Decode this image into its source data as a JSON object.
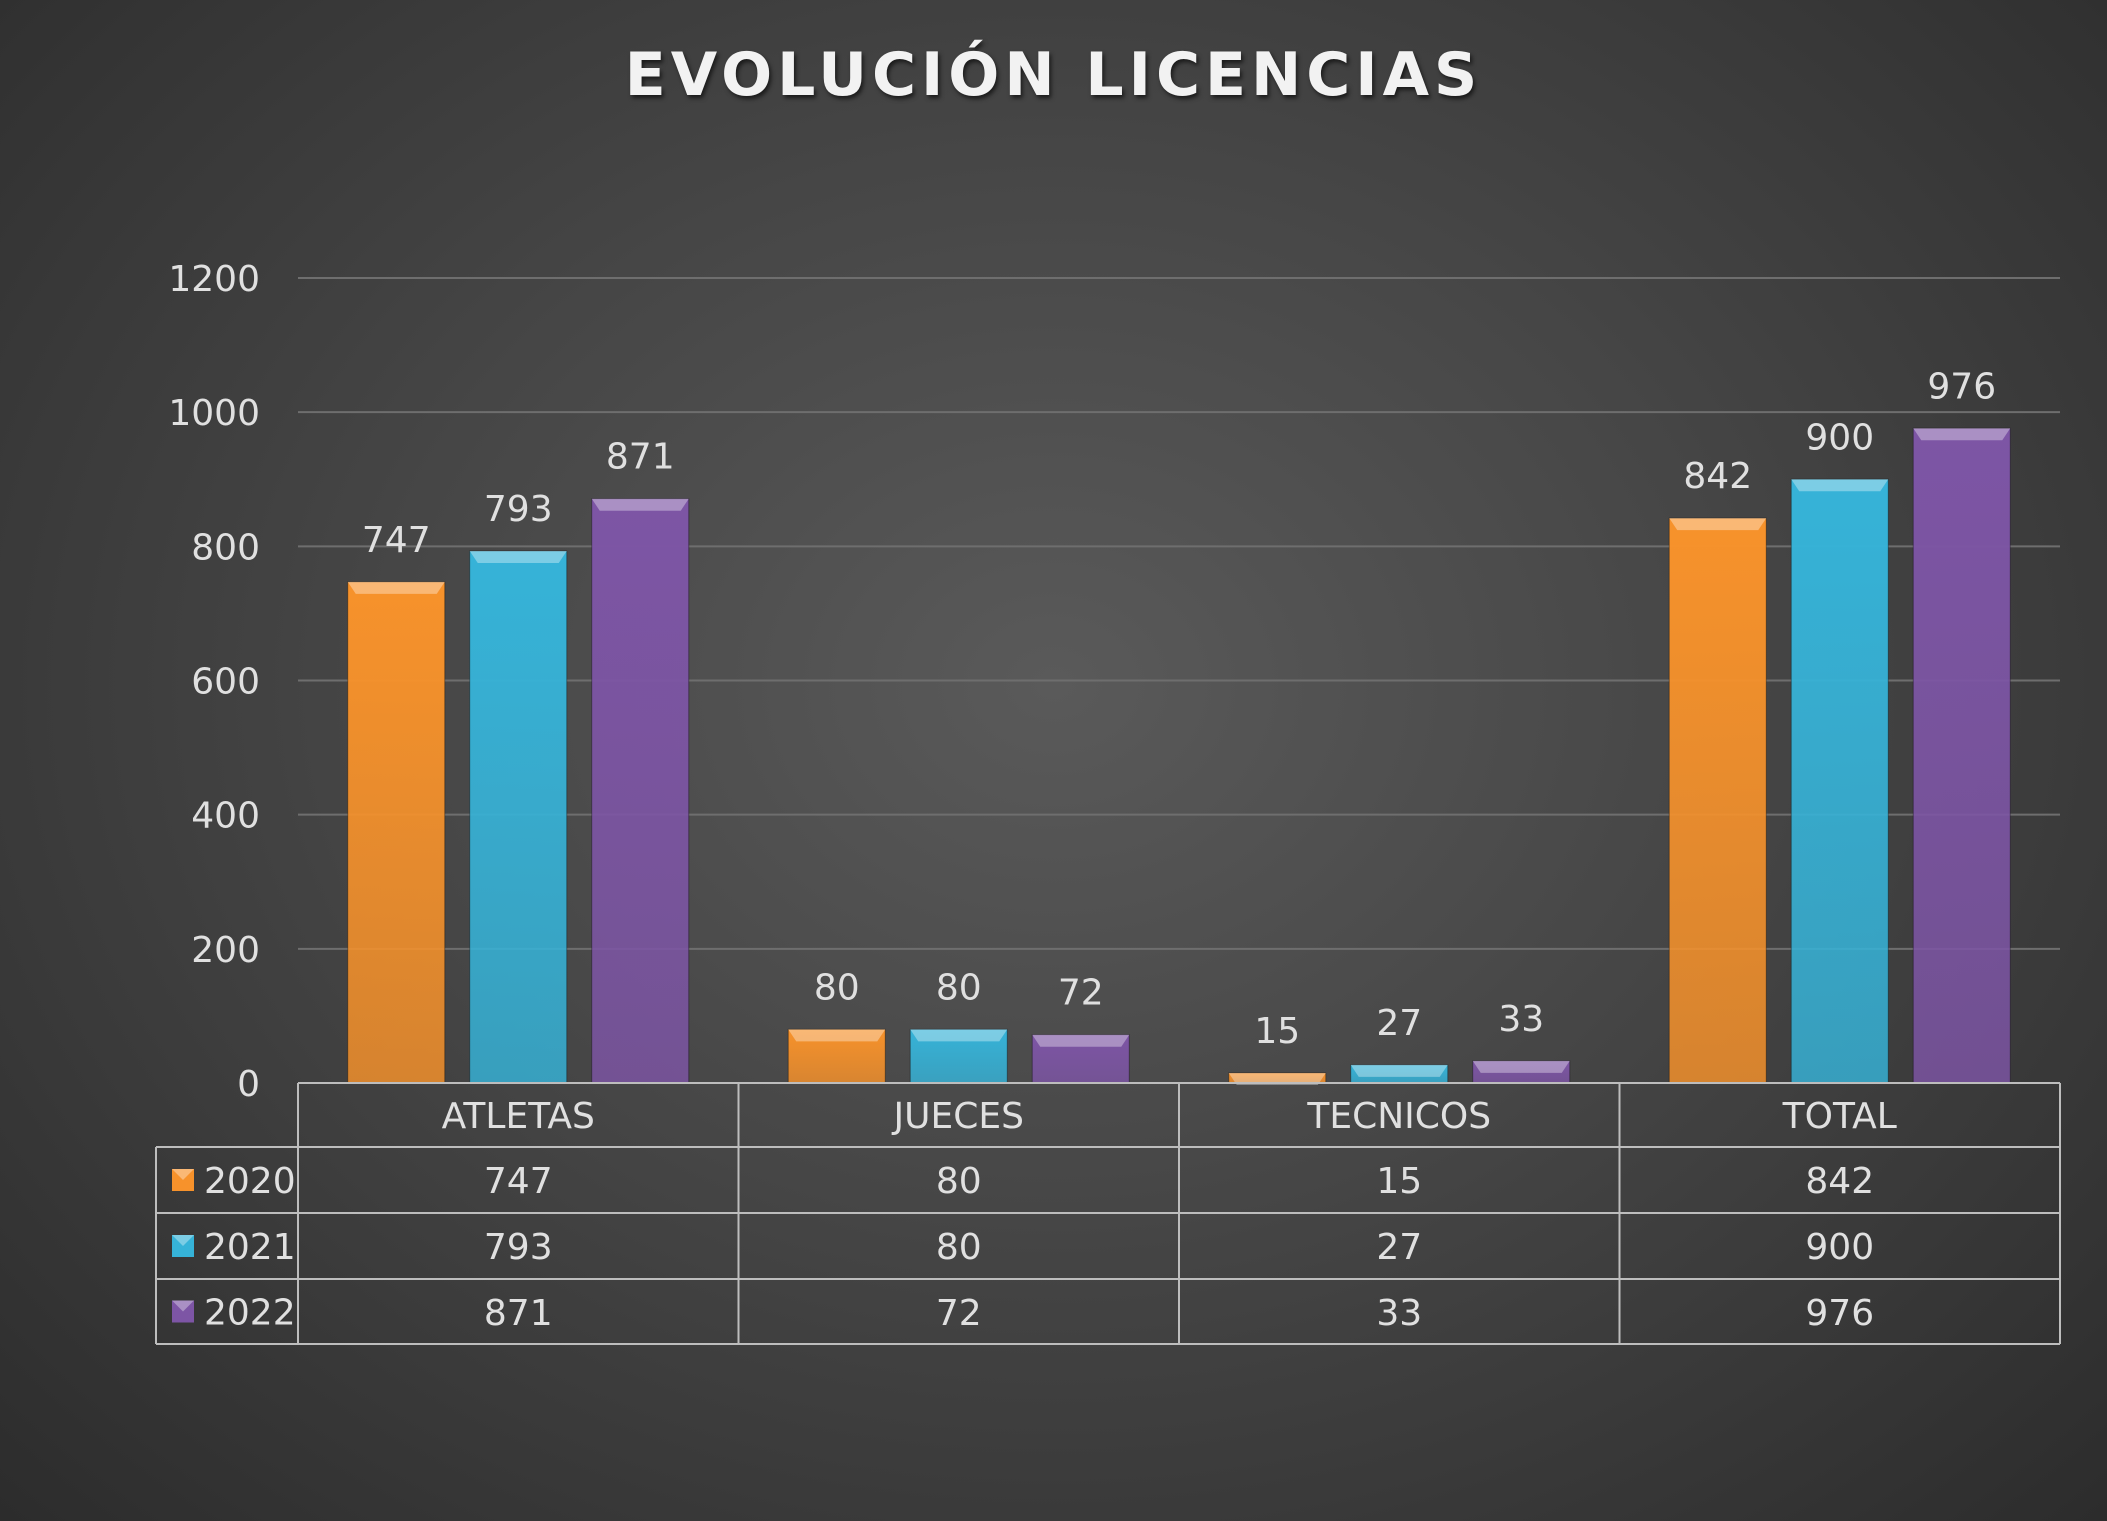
{
  "chart_data": {
    "type": "bar",
    "title": "EVOLUCIÓN LICENCIAS",
    "categories": [
      "ATLETAS",
      "JUECES",
      "TECNICOS",
      "TOTAL"
    ],
    "series": [
      {
        "name": "2020",
        "values": [
          747,
          80,
          15,
          842
        ],
        "color": "#f7922b"
      },
      {
        "name": "2021",
        "values": [
          793,
          80,
          27,
          900
        ],
        "color": "#36b3d8"
      },
      {
        "name": "2022",
        "values": [
          871,
          72,
          33,
          976
        ],
        "color": "#7d55a5"
      }
    ],
    "ylim": [
      0,
      1200
    ],
    "yticks": [
      0,
      200,
      400,
      600,
      800,
      1000,
      1200
    ],
    "grid": true,
    "data_labels": true,
    "legend": "data-table"
  }
}
